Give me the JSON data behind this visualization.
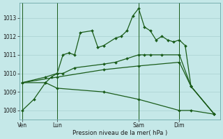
{
  "bg_color": "#c5e8e8",
  "grid_color": "#aed4d4",
  "line_color": "#1a5c1a",
  "xlabel": "Pression niveau de la mer( hPa )",
  "ylim": [
    1007.5,
    1013.8
  ],
  "yticks": [
    1008,
    1009,
    1010,
    1011,
    1012,
    1013
  ],
  "x_tick_labels": [
    "Ven",
    "Lun",
    "Sam",
    "Dim"
  ],
  "x_tick_positions": [
    0,
    6,
    20,
    27
  ],
  "x_vlines": [
    0,
    6,
    20,
    27
  ],
  "xlim": [
    -0.5,
    34
  ],
  "series": {
    "s1": {
      "x": [
        0,
        2,
        4,
        5,
        6,
        7,
        8,
        9,
        10,
        12,
        13,
        14,
        16,
        17,
        18,
        19,
        20,
        21,
        22,
        23,
        24,
        25,
        26,
        27,
        28,
        29,
        33
      ],
      "y": [
        1008.0,
        1008.6,
        1009.5,
        1009.8,
        1010.0,
        1011.0,
        1011.1,
        1011.0,
        1012.2,
        1012.3,
        1011.4,
        1011.5,
        1011.9,
        1012.0,
        1012.3,
        1013.1,
        1013.5,
        1012.5,
        1012.3,
        1011.8,
        1012.0,
        1011.8,
        1011.7,
        1011.8,
        1011.5,
        1009.3,
        1007.8
      ]
    },
    "s2": {
      "x": [
        0,
        4,
        6,
        7,
        9,
        14,
        16,
        18,
        20,
        21,
        22,
        24,
        27,
        29,
        33
      ],
      "y": [
        1009.5,
        1009.8,
        1010.0,
        1010.0,
        1010.3,
        1010.5,
        1010.6,
        1010.8,
        1011.0,
        1011.0,
        1011.0,
        1011.0,
        1011.0,
        1009.3,
        1007.8
      ]
    },
    "s3": {
      "x": [
        0,
        6,
        14,
        20,
        27,
        29,
        33
      ],
      "y": [
        1009.5,
        1009.8,
        1010.2,
        1010.4,
        1010.6,
        1009.3,
        1007.8
      ]
    },
    "s4": {
      "x": [
        0,
        4,
        6,
        14,
        20,
        27,
        29,
        33
      ],
      "y": [
        1009.5,
        1009.5,
        1009.2,
        1009.0,
        1008.6,
        1008.0,
        1008.0,
        1007.8
      ]
    }
  }
}
